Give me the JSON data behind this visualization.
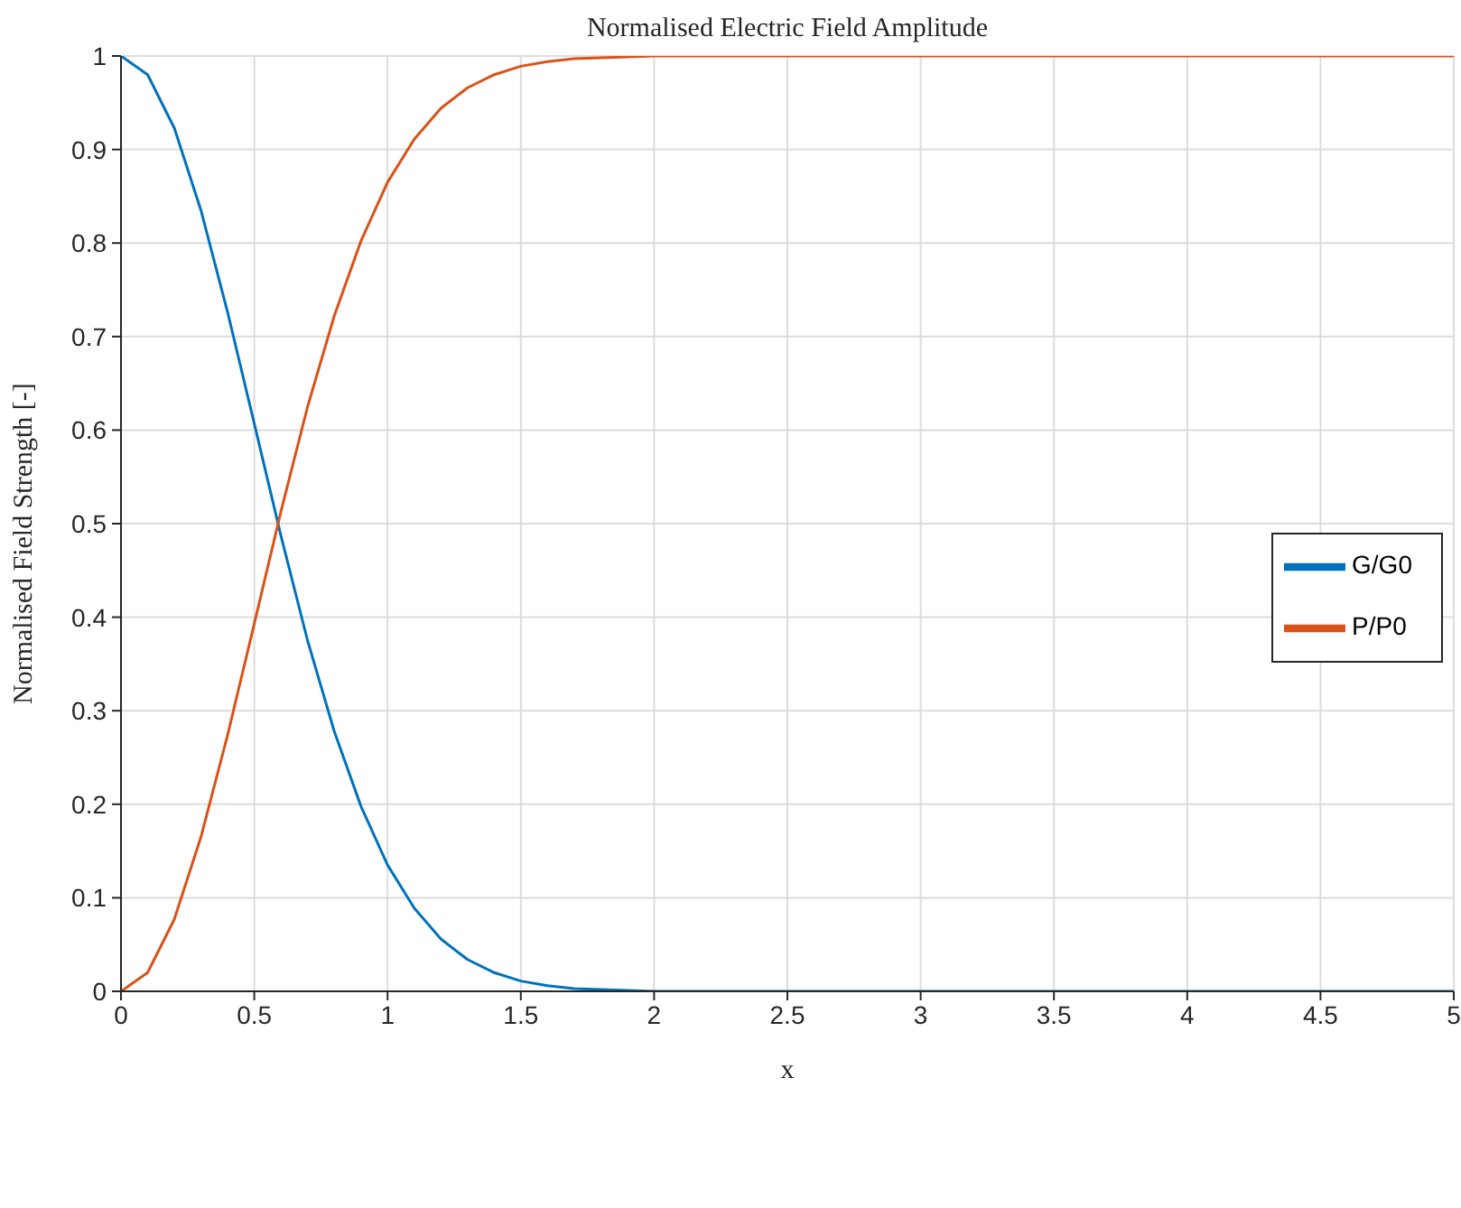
{
  "chart_data": {
    "type": "line",
    "title": "Normalised Electric Field Amplitude",
    "xlabel": "x",
    "ylabel": "Normalised Field Strength [-]",
    "x": [
      0,
      0.1,
      0.2,
      0.3,
      0.4,
      0.5,
      0.6,
      0.7,
      0.8,
      0.9,
      1,
      1.1,
      1.2,
      1.3,
      1.4,
      1.5,
      1.6,
      1.7,
      1.8,
      1.9,
      2,
      2.5,
      3,
      3.5,
      4,
      4.5,
      5
    ],
    "series": [
      {
        "name": "G/G0",
        "color": "#0072bd",
        "values": [
          1,
          0.98,
          0.923,
          0.835,
          0.726,
          0.607,
          0.487,
          0.375,
          0.278,
          0.198,
          0.135,
          0.089,
          0.056,
          0.034,
          0.02,
          0.011,
          0.006,
          0.003,
          0.002,
          0.001,
          0,
          0,
          0,
          0,
          0,
          0,
          0
        ]
      },
      {
        "name": "P/P0",
        "color": "#d95319",
        "values": [
          0,
          0.02,
          0.077,
          0.165,
          0.274,
          0.393,
          0.513,
          0.625,
          0.722,
          0.802,
          0.865,
          0.911,
          0.944,
          0.966,
          0.98,
          0.989,
          0.994,
          0.997,
          0.998,
          0.999,
          1,
          1,
          1,
          1,
          1,
          1,
          1
        ]
      }
    ],
    "xlim": [
      0,
      5
    ],
    "xticks": [
      0,
      0.5,
      1,
      1.5,
      2,
      2.5,
      3,
      3.5,
      4,
      4.5,
      5
    ],
    "ylim": [
      0,
      1
    ],
    "yticks": [
      0,
      0.1,
      0.2,
      0.3,
      0.4,
      0.5,
      0.6,
      0.7,
      0.8,
      0.9,
      1
    ],
    "grid": true,
    "legend": "right",
    "marker": "none",
    "line_style": "solid"
  }
}
